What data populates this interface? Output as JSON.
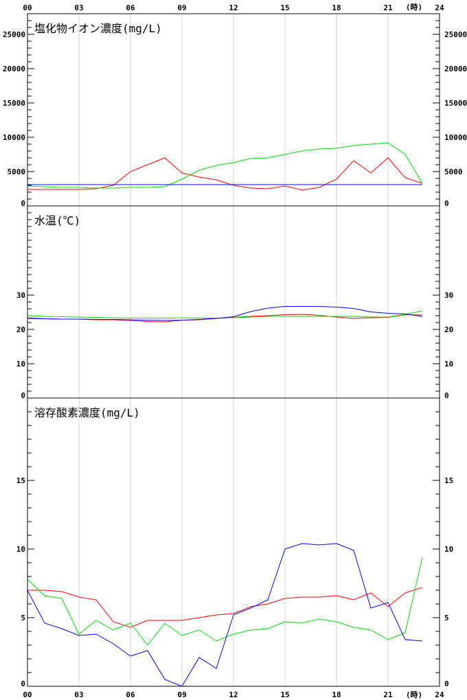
{
  "x_axis": {
    "ticks": [
      "00",
      "03",
      "06",
      "09",
      "12",
      "15",
      "18",
      "21",
      "24"
    ],
    "unit": "(時)"
  },
  "series_colors": {
    "red": "#ff0000",
    "green": "#00dd00",
    "blue": "#0000ff"
  },
  "chart_data": [
    {
      "type": "line",
      "title": "塩化物イオン濃度(mg/L)",
      "ylim": [
        0,
        28000
      ],
      "yticks": [
        0,
        5000,
        10000,
        15000,
        20000,
        25000
      ],
      "minor_step": 1000,
      "x": [
        0,
        1,
        2,
        3,
        4,
        5,
        6,
        7,
        8,
        9,
        10,
        11,
        12,
        13,
        14,
        15,
        16,
        17,
        18,
        19,
        20,
        21,
        22,
        23
      ],
      "series": [
        {
          "color": "#ff0000",
          "values": [
            2400,
            2400,
            2400,
            2400,
            2500,
            3000,
            5000,
            6000,
            7000,
            4800,
            4200,
            3800,
            3000,
            2600,
            2500,
            2900,
            2300,
            2700,
            3900,
            6600,
            4800,
            7000,
            4100,
            3300
          ]
        },
        {
          "color": "#00dd00",
          "values": [
            2900,
            2800,
            2700,
            2700,
            2600,
            2600,
            2700,
            2700,
            2800,
            3900,
            5200,
            5900,
            6300,
            6900,
            7000,
            7500,
            8000,
            8300,
            8400,
            8800,
            9000,
            9200,
            7500,
            3300
          ]
        },
        {
          "color": "#0000ff",
          "values": [
            3100,
            3100,
            3100,
            3100,
            3100,
            3100,
            3100,
            3100,
            3100,
            3100,
            3100,
            3100,
            3100,
            3100,
            3100,
            3100,
            3100,
            3100,
            3100,
            3100,
            3100,
            3100,
            3100,
            3100
          ]
        }
      ]
    },
    {
      "type": "line",
      "title": "水温(℃)",
      "ylim": [
        0,
        56
      ],
      "yticks": [
        0,
        10,
        20,
        30
      ],
      "minor_step": 2,
      "x": [
        0,
        1,
        2,
        3,
        4,
        5,
        6,
        7,
        8,
        9,
        10,
        11,
        12,
        13,
        14,
        15,
        16,
        17,
        18,
        19,
        20,
        21,
        22,
        23
      ],
      "series": [
        {
          "color": "#ff0000",
          "values": [
            23.4,
            23.1,
            23.0,
            23.0,
            22.8,
            22.8,
            22.6,
            22.3,
            22.2,
            22.7,
            22.8,
            23.2,
            23.5,
            23.8,
            24.0,
            24.3,
            24.4,
            24.1,
            23.6,
            23.2,
            23.4,
            23.5,
            24.3,
            24.2
          ]
        },
        {
          "color": "#00dd00",
          "values": [
            24.0,
            23.8,
            23.7,
            23.6,
            23.5,
            23.4,
            23.3,
            23.3,
            23.3,
            23.4,
            23.3,
            23.3,
            23.4,
            23.6,
            23.8,
            23.8,
            23.8,
            23.8,
            23.8,
            23.8,
            23.6,
            23.6,
            24.4,
            25.4
          ]
        },
        {
          "color": "#0000ff",
          "values": [
            23.2,
            23.1,
            23.0,
            23.0,
            22.9,
            22.9,
            22.8,
            22.7,
            22.6,
            22.7,
            22.9,
            23.2,
            23.7,
            25.2,
            26.2,
            26.7,
            26.7,
            26.7,
            26.5,
            26.1,
            25.1,
            24.7,
            24.5,
            23.8
          ]
        }
      ]
    },
    {
      "type": "line",
      "title": "溶存酸素濃度(mg/L)",
      "ylim": [
        0,
        21
      ],
      "yticks": [
        0,
        5,
        10,
        15
      ],
      "minor_step": 1,
      "x": [
        0,
        1,
        2,
        3,
        4,
        5,
        6,
        7,
        8,
        9,
        10,
        11,
        12,
        13,
        14,
        15,
        16,
        17,
        18,
        19,
        20,
        21,
        22,
        23
      ],
      "series": [
        {
          "color": "#ff0000",
          "values": [
            7.0,
            7.0,
            6.9,
            6.5,
            6.3,
            4.7,
            4.3,
            4.8,
            4.8,
            4.8,
            5.0,
            5.2,
            5.3,
            5.8,
            6.0,
            6.4,
            6.5,
            6.5,
            6.6,
            6.3,
            6.8,
            5.8,
            6.8,
            7.2
          ]
        },
        {
          "color": "#00dd00",
          "values": [
            7.8,
            6.6,
            6.4,
            3.8,
            4.8,
            4.1,
            4.6,
            3.0,
            4.6,
            3.7,
            4.1,
            3.3,
            3.8,
            4.1,
            4.2,
            4.7,
            4.6,
            4.9,
            4.7,
            4.3,
            4.1,
            3.4,
            3.9,
            9.4
          ]
        },
        {
          "color": "#0000ff",
          "values": [
            7.0,
            4.6,
            4.2,
            3.7,
            3.8,
            3.1,
            2.2,
            2.6,
            0.5,
            0.0,
            2.1,
            1.3,
            5.2,
            5.7,
            6.3,
            10.0,
            10.4,
            10.3,
            10.4,
            9.9,
            5.7,
            6.1,
            3.4,
            3.3
          ]
        }
      ]
    }
  ]
}
